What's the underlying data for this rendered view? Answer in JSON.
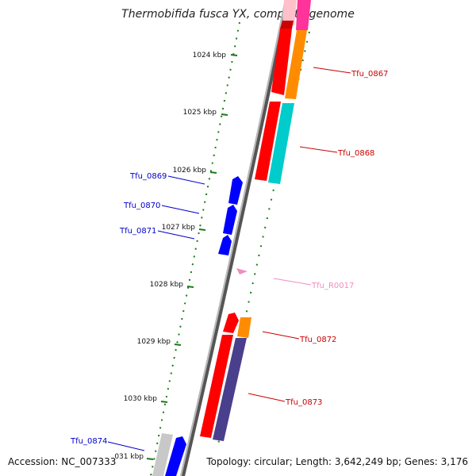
{
  "title": "Thermobifida fusca YX, complete genome",
  "footer": {
    "accession": "Accession: NC_007333",
    "summary": "Topology: circular; Length: 3,642,249 bp; Genes: 3,176"
  },
  "ticks": [
    "1024 kbp",
    "1025 kbp",
    "1026 kbp",
    "1027 kbp",
    "1028 kbp",
    "1029 kbp",
    "1030 kbp",
    "031 kbp"
  ],
  "genes": [
    {
      "name": "Tfu_0867",
      "color": "#cc0000"
    },
    {
      "name": "Tfu_0868",
      "color": "#cc0000"
    },
    {
      "name": "Tfu_0869",
      "color": "#0000cc"
    },
    {
      "name": "Tfu_0870",
      "color": "#0000cc"
    },
    {
      "name": "Tfu_0871",
      "color": "#0000cc"
    },
    {
      "name": "Tfu_R0017",
      "color": "#f08cc0"
    },
    {
      "name": "Tfu_0872",
      "color": "#cc0000"
    },
    {
      "name": "Tfu_0873",
      "color": "#cc0000"
    },
    {
      "name": "Tfu_0874",
      "color": "#0000cc"
    }
  ],
  "colors": {
    "cds_red": "#ff0000",
    "orange": "#ff8c00",
    "cyan": "#00cccc",
    "slate": "#4a3f8c",
    "blue": "#0000ff",
    "pink": "#ff3399",
    "backbone": "#808080",
    "tick": "#1a7a1a"
  }
}
